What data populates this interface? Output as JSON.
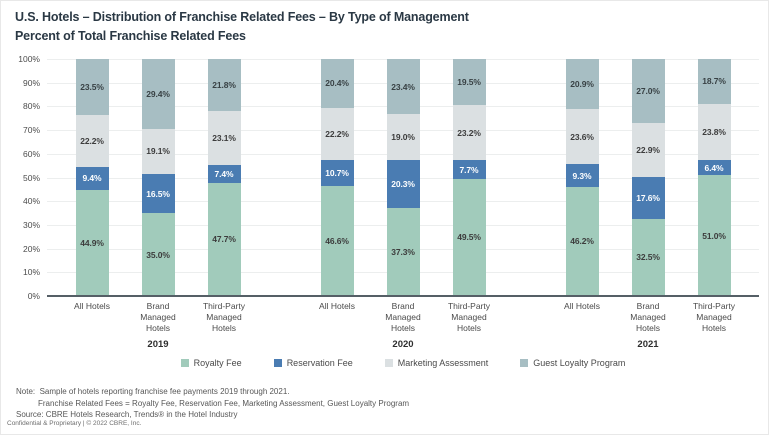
{
  "chart_data": {
    "type": "bar",
    "stacked": true,
    "title": "U.S. Hotels – Distribution of Franchise Related Fees – By Type of Management",
    "subtitle": "Percent of Total Franchise Related Fees",
    "ylim": [
      0,
      100
    ],
    "ytick_step": 10,
    "ytick_suffix": "%",
    "grid": true,
    "legend_position": "bottom",
    "value_suffix": "%",
    "series_meta": [
      {
        "name": "Royalty Fee",
        "color": "#a1cbbb",
        "label_color": "#3c3c3c"
      },
      {
        "name": "Reservation Fee",
        "color": "#4a7cb2",
        "label_color": "#ffffff"
      },
      {
        "name": "Marketing Assessment",
        "color": "#dbe0e2",
        "label_color": "#3c3c3c"
      },
      {
        "name": "Guest Loyalty Program",
        "color": "#a7bec3",
        "label_color": "#384144"
      }
    ],
    "groups": [
      {
        "year": "2019",
        "categories": [
          "All Hotels",
          "Brand Managed Hotels",
          "Third-Party Managed Hotels"
        ],
        "series": [
          {
            "name": "Royalty Fee",
            "values": [
              44.9,
              35.0,
              47.7
            ]
          },
          {
            "name": "Reservation Fee",
            "values": [
              9.4,
              16.5,
              7.4
            ]
          },
          {
            "name": "Marketing Assessment",
            "values": [
              22.2,
              19.1,
              23.1
            ]
          },
          {
            "name": "Guest Loyalty Program",
            "values": [
              23.5,
              29.4,
              21.8
            ]
          }
        ]
      },
      {
        "year": "2020",
        "categories": [
          "All Hotels",
          "Brand Managed Hotels",
          "Third-Party Managed Hotels"
        ],
        "series": [
          {
            "name": "Royalty Fee",
            "values": [
              46.6,
              37.3,
              49.5
            ]
          },
          {
            "name": "Reservation Fee",
            "values": [
              10.7,
              20.3,
              7.7
            ]
          },
          {
            "name": "Marketing Assessment",
            "values": [
              22.2,
              19.0,
              23.2
            ]
          },
          {
            "name": "Guest Loyalty Program",
            "values": [
              20.4,
              23.4,
              19.5
            ]
          }
        ]
      },
      {
        "year": "2021",
        "categories": [
          "All Hotels",
          "Brand Managed Hotels",
          "Third-Party Managed Hotels"
        ],
        "series": [
          {
            "name": "Royalty Fee",
            "values": [
              46.2,
              32.5,
              51.0
            ]
          },
          {
            "name": "Reservation Fee",
            "values": [
              9.3,
              17.6,
              6.4
            ]
          },
          {
            "name": "Marketing Assessment",
            "values": [
              23.6,
              22.9,
              23.8
            ]
          },
          {
            "name": "Guest Loyalty Program",
            "values": [
              20.9,
              27.0,
              18.7
            ]
          }
        ]
      }
    ]
  },
  "notes": {
    "lines": [
      {
        "text": "Note:  Sample of hotels reporting franchise fee payments 2019 through 2021.",
        "indent": 0
      },
      {
        "text": "Franchise Related Fees = Royalty Fee, Reservation Fee, Marketing Assessment, Guest Loyalty Program",
        "indent": 1
      },
      {
        "text": "Source: CBRE Hotels Research, Trends® in the Hotel Industry",
        "indent": 0
      }
    ],
    "confidential": "Confidential & Proprietary | © 2022 CBRE, Inc."
  }
}
